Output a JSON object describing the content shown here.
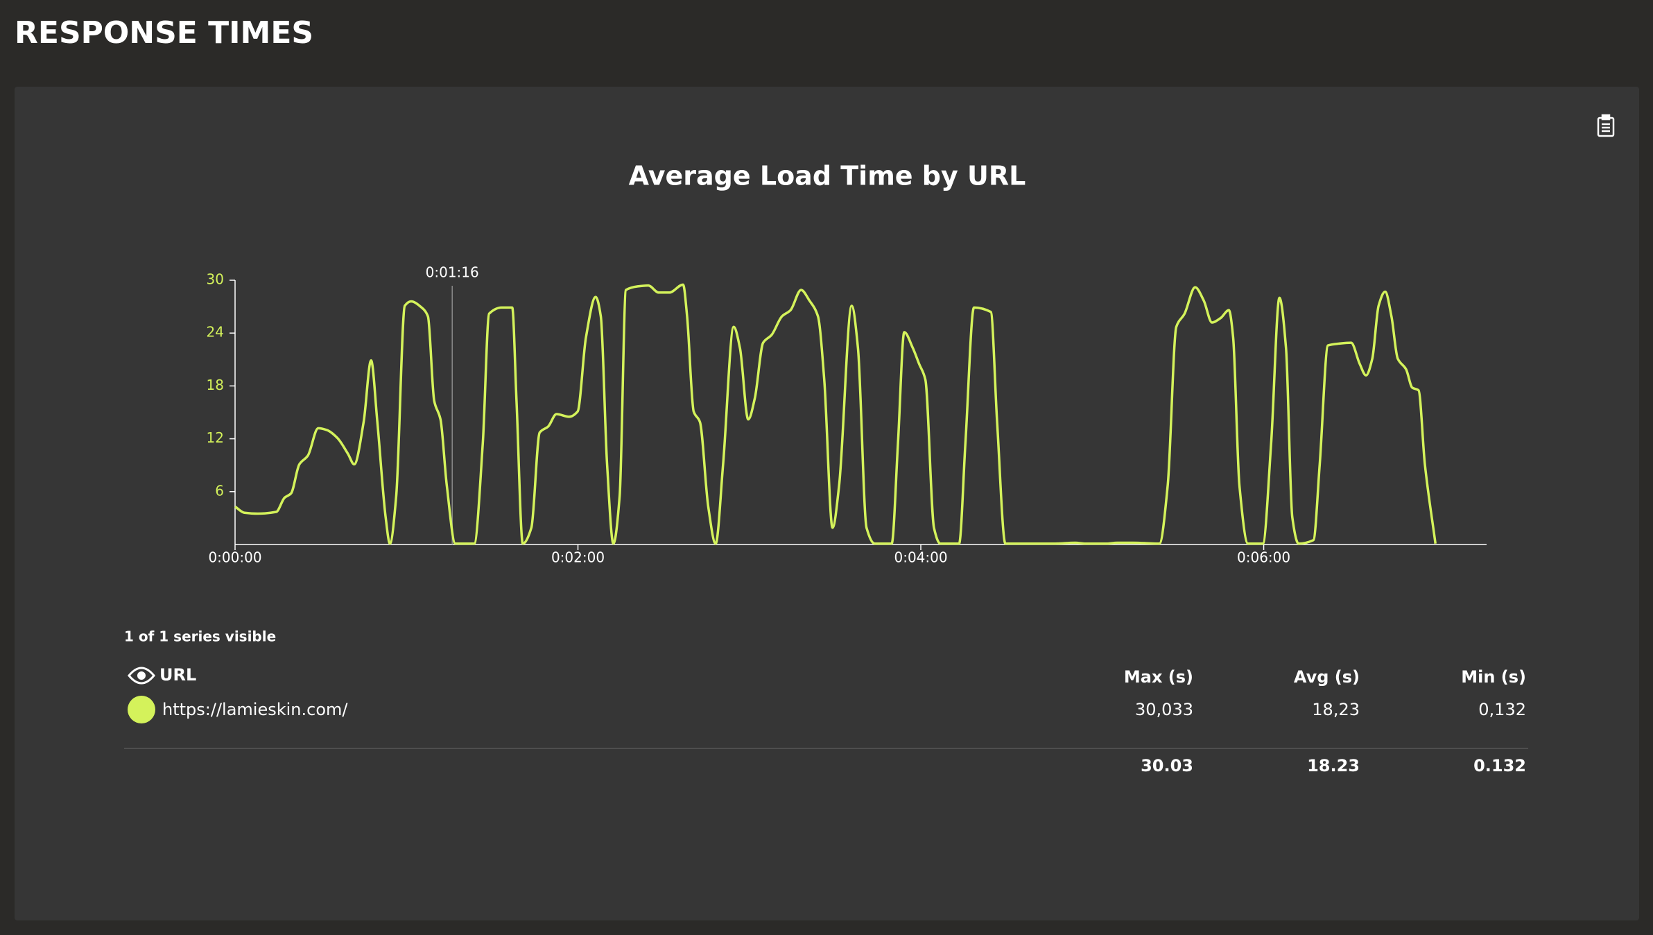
{
  "page_title": "RESPONSE TIMES",
  "chart_data": {
    "type": "line",
    "title": "Average Load Time by URL",
    "x": [
      0,
      3.3,
      8,
      14.4,
      17.3,
      19.6,
      22.5,
      25.5,
      29.1,
      32.1,
      35.8,
      39.5,
      41.7,
      45,
      47.6,
      49.8,
      52.7,
      54.2,
      56.4,
      59.4,
      61.6,
      65.3,
      67.5,
      69.7,
      71.9,
      74.1,
      77.1,
      83.7,
      86.7,
      88.9,
      93.3,
      97,
      98.5,
      100.7,
      103.7,
      106.6,
      109.6,
      112.5,
      116.9,
      119.9,
      122.8,
      126.2,
      128,
      130.2,
      132.4,
      134.6,
      136.8,
      140.9,
      144.6,
      148.3,
      152,
      156.8,
      158.2,
      160.5,
      162.7,
      165.6,
      168.2,
      170.8,
      174.5,
      176.7,
      179.6,
      181.9,
      184.8,
      187.8,
      191.4,
      194.4,
      198.1,
      201,
      204,
      206.2,
      209.1,
      211.4,
      215.8,
      218,
      221,
      223.9,
      229.8,
      232,
      234.2,
      237.2,
      239.4,
      241.6,
      244.6,
      246.8,
      253.4,
      255.6,
      258.6,
      264.5,
      266.7,
      269.6,
      286.6,
      294,
      297.7,
      305,
      308.7,
      314.3,
      323.5,
      326.4,
      329.4,
      332.3,
      336,
      339,
      341.9,
      344.9,
      347.8,
      349.3,
      351.5,
      354.5,
      359.7,
      362.6,
      365.5,
      367.8,
      370,
      372.2,
      377.4,
      379.6,
      382.5,
      386.2,
      390.6,
      393.6,
      395.8,
      398,
      400.2,
      402.5,
      404.7,
      406.9,
      409.8,
      412,
      414.2,
      416.4,
      420.1
    ],
    "series": [
      {
        "name": "https://lamieskin.com/",
        "color": "#d4f25b",
        "values": [
          4.3,
          3.6,
          3.5,
          3.7,
          5.3,
          5.8,
          9.1,
          10.1,
          13.2,
          13,
          12.1,
          10.3,
          9.1,
          13.9,
          20.9,
          13.9,
          3.1,
          0.1,
          5.5,
          27.1,
          27.6,
          26.9,
          25.9,
          16.3,
          14.2,
          6.7,
          0.1,
          0.1,
          11.5,
          26.2,
          26.9,
          26.9,
          16.3,
          0.1,
          1.9,
          12.7,
          13.4,
          14.8,
          14.5,
          15.1,
          23.5,
          28.1,
          25.9,
          9.1,
          0.1,
          5.5,
          28.9,
          29.3,
          29.4,
          28.6,
          28.6,
          29.5,
          25.9,
          15.1,
          13.9,
          4.3,
          0.1,
          9.1,
          24.7,
          22.3,
          14.2,
          16.6,
          22.9,
          23.8,
          25.9,
          26.6,
          28.9,
          27.7,
          25.9,
          18.7,
          1.9,
          6.7,
          27.1,
          22.3,
          1.9,
          0.1,
          0.1,
          11.5,
          24.1,
          22.3,
          20.5,
          18.7,
          1.9,
          0.1,
          0.1,
          11.5,
          26.9,
          26.4,
          13.9,
          0.1,
          0.1,
          0.2,
          0.1,
          0.1,
          0.2,
          0.2,
          0.1,
          6.7,
          24.7,
          26.2,
          29.2,
          27.7,
          25.2,
          25.7,
          26.6,
          23.5,
          6.7,
          0.1,
          0.1,
          11.5,
          28,
          22.3,
          3.1,
          0.1,
          0.5,
          9.1,
          22.6,
          22.8,
          22.9,
          20.5,
          19.2,
          21.1,
          27.1,
          28.7,
          25.9,
          21.1,
          19.9,
          17.8,
          17.5,
          9.1,
          0.1
        ]
      }
    ],
    "xlim": [
      0,
      438
    ],
    "ylim": [
      0,
      30
    ],
    "xticks": [
      {
        "value": 0,
        "label": "0:00:00"
      },
      {
        "value": 120,
        "label": "0:02:00"
      },
      {
        "value": 240,
        "label": "0:04:00"
      },
      {
        "value": 360,
        "label": "0:06:00"
      }
    ],
    "yticks": [
      6,
      12,
      18,
      24,
      30
    ],
    "annotations": [
      {
        "x": 76,
        "label": "0:01:16"
      }
    ]
  },
  "legend": {
    "visibility": "1 of 1 series visible",
    "columns": [
      "URL",
      "Max (s)",
      "Avg (s)",
      "Min (s)"
    ],
    "rows": [
      [
        "30,033",
        "18,23",
        "0,132"
      ]
    ],
    "totals": [
      "30.03",
      "18.23",
      "0.132"
    ]
  }
}
